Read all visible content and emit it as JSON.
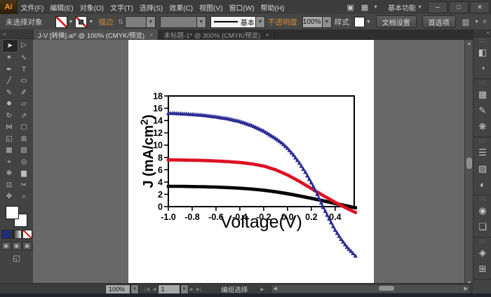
{
  "app": {
    "logo": "Ai",
    "menus": [
      "文件(F)",
      "编辑(E)",
      "对象(O)",
      "文字(T)",
      "选择(S)",
      "效果(C)",
      "视图(V)",
      "窗口(W)",
      "帮助(H)"
    ],
    "workspace": "基本功能",
    "icons": {
      "bridge": "▣",
      "arrange_documents": "▦",
      "minimize": "─",
      "maximize": "□",
      "close": "✕",
      "caret_down": "▼",
      "collapse_double_arrow": "«"
    }
  },
  "control_bar": {
    "no_selection_label": "未选择对象",
    "stroke_label": "描边:",
    "stepper_icon": "⇅",
    "brush_definition": "基本",
    "opacity_label": "不透明度:",
    "opacity_value": "100%",
    "style_label": "样式:",
    "document_setup_button": "文档设置",
    "preferences_button": "首选项",
    "panel_menu_icon": "≡"
  },
  "tabs": [
    {
      "title": "J-V [转换].ai* @ 100% (CMYK/预览)",
      "close": "×",
      "active": true
    },
    {
      "title": "未标题-1* @ 300% (CMYK/预览)",
      "close": "×",
      "active": false
    }
  ],
  "toolbar": {
    "tools": [
      {
        "name": "selection",
        "glyph": "➤",
        "active": true
      },
      {
        "name": "direct-selection",
        "glyph": "▷",
        "active": false
      },
      {
        "name": "magic-wand",
        "glyph": "✶",
        "active": false
      },
      {
        "name": "lasso",
        "glyph": "∿",
        "active": false
      },
      {
        "name": "pen",
        "glyph": "✒",
        "active": false
      },
      {
        "name": "type",
        "glyph": "T",
        "active": false
      },
      {
        "name": "line-segment",
        "glyph": "╱",
        "active": false
      },
      {
        "name": "rectangle",
        "glyph": "▭",
        "active": false
      },
      {
        "name": "paintbrush",
        "glyph": "✎",
        "active": false
      },
      {
        "name": "pencil",
        "glyph": "✐",
        "active": false
      },
      {
        "name": "blob-brush",
        "glyph": "✹",
        "active": false
      },
      {
        "name": "eraser",
        "glyph": "▱",
        "active": false
      },
      {
        "name": "rotate",
        "glyph": "↻",
        "active": false
      },
      {
        "name": "scale",
        "glyph": "⇗",
        "active": false
      },
      {
        "name": "width-tool",
        "glyph": "⋈",
        "active": false
      },
      {
        "name": "free-transform",
        "glyph": "▢",
        "active": false
      },
      {
        "name": "shape-builder",
        "glyph": "◱",
        "active": false
      },
      {
        "name": "perspective-grid",
        "glyph": "⊞",
        "active": false
      },
      {
        "name": "mesh",
        "glyph": "▦",
        "active": false
      },
      {
        "name": "gradient",
        "glyph": "▨",
        "active": false
      },
      {
        "name": "eyedropper",
        "glyph": "⌖",
        "active": false
      },
      {
        "name": "blend",
        "glyph": "◎",
        "active": false
      },
      {
        "name": "symbol-sprayer",
        "glyph": "❋",
        "active": false
      },
      {
        "name": "column-graph",
        "glyph": "▆",
        "active": false
      },
      {
        "name": "artboard",
        "glyph": "⊡",
        "active": false
      },
      {
        "name": "slice",
        "glyph": "✂",
        "active": false
      },
      {
        "name": "hand",
        "glyph": "✥",
        "active": false
      },
      {
        "name": "zoom",
        "glyph": "⌕",
        "active": false
      }
    ],
    "fill_none_color": "#d42020",
    "color_buttons": [
      "#1d2f7b",
      "gradient",
      "none"
    ]
  },
  "status_bar": {
    "zoom_value": "100%",
    "artboard_number": "1",
    "nav_icons": [
      "|◀",
      "◀",
      "▶",
      "▶|"
    ],
    "status_text": "编组选择",
    "popup_arrow": "▶"
  },
  "dock": {
    "groups": [
      [
        {
          "name": "color",
          "glyph": "◧"
        },
        {
          "name": "color-guide",
          "glyph": "◔"
        }
      ],
      [
        {
          "name": "swatches",
          "glyph": "▦"
        },
        {
          "name": "brushes",
          "glyph": "✎"
        },
        {
          "name": "symbols",
          "glyph": "❋"
        }
      ],
      [
        {
          "name": "stroke",
          "glyph": "☰"
        },
        {
          "name": "gradient",
          "glyph": "▨"
        },
        {
          "name": "transparency",
          "glyph": "◐"
        }
      ],
      [
        {
          "name": "appearance",
          "glyph": "◉"
        },
        {
          "name": "graphic-styles",
          "glyph": "❏"
        }
      ],
      [
        {
          "name": "layers",
          "glyph": "◈"
        },
        {
          "name": "artboards",
          "glyph": "⊞"
        }
      ]
    ]
  },
  "chart_data": {
    "type": "line",
    "title": "",
    "xlabel": "Voltage(V)",
    "ylabel": "J (mA/cm²)",
    "ylabel_main": "J (mA/cm",
    "ylabel_sup": "2",
    "ylabel_close": ")",
    "xlim": [
      -1.0,
      0.56
    ],
    "ylim": [
      0,
      18
    ],
    "xtick_values": [
      -1.0,
      -0.8,
      -0.6,
      -0.4,
      -0.2,
      0.0,
      0.2,
      0.4
    ],
    "xtick_labels": [
      "-1.0",
      "-0.8",
      "-0.6",
      "-0.4",
      "-0.2",
      "0.0",
      "0.2",
      "0.4"
    ],
    "ytick_values": [
      0,
      2,
      4,
      6,
      8,
      10,
      12,
      14,
      16,
      18
    ],
    "ytick_labels": [
      "0",
      "2",
      "4",
      "6",
      "8",
      "10",
      "12",
      "14",
      "16",
      "18"
    ],
    "grid": false,
    "legend": "none",
    "frame": true,
    "note": "curves are unclipped and overflow below the axis frame at right",
    "series": [
      {
        "name": "black-squares",
        "marker": "square",
        "color": "#000000",
        "points": [
          [
            -1.0,
            3.3
          ],
          [
            -0.9,
            3.3
          ],
          [
            -0.8,
            3.27
          ],
          [
            -0.7,
            3.23
          ],
          [
            -0.6,
            3.18
          ],
          [
            -0.5,
            3.1
          ],
          [
            -0.4,
            3.0
          ],
          [
            -0.3,
            2.86
          ],
          [
            -0.2,
            2.67
          ],
          [
            -0.1,
            2.42
          ],
          [
            0.0,
            2.1
          ],
          [
            0.1,
            1.74
          ],
          [
            0.2,
            1.36
          ],
          [
            0.3,
            0.95
          ],
          [
            0.4,
            0.52
          ],
          [
            0.5,
            0.1
          ],
          [
            0.57,
            -0.18
          ]
        ]
      },
      {
        "name": "red-circles",
        "marker": "circle",
        "color": "#dd1122",
        "points": [
          [
            -1.0,
            7.6
          ],
          [
            -0.9,
            7.58
          ],
          [
            -0.8,
            7.55
          ],
          [
            -0.7,
            7.5
          ],
          [
            -0.6,
            7.42
          ],
          [
            -0.5,
            7.32
          ],
          [
            -0.4,
            7.18
          ],
          [
            -0.3,
            6.95
          ],
          [
            -0.2,
            6.6
          ],
          [
            -0.1,
            6.0
          ],
          [
            0.0,
            5.15
          ],
          [
            0.1,
            4.1
          ],
          [
            0.2,
            2.95
          ],
          [
            0.3,
            1.8
          ],
          [
            0.4,
            0.7
          ],
          [
            0.45,
            0.2
          ],
          [
            0.5,
            -0.3
          ],
          [
            0.57,
            -0.95
          ]
        ]
      },
      {
        "name": "blue-triangles",
        "marker": "triangle",
        "color": "#2e2e97",
        "points": [
          [
            -1.0,
            15.2
          ],
          [
            -0.9,
            15.12
          ],
          [
            -0.8,
            15.0
          ],
          [
            -0.7,
            14.85
          ],
          [
            -0.6,
            14.6
          ],
          [
            -0.5,
            14.3
          ],
          [
            -0.4,
            13.85
          ],
          [
            -0.3,
            13.2
          ],
          [
            -0.2,
            12.3
          ],
          [
            -0.1,
            11.1
          ],
          [
            -0.05,
            10.4
          ],
          [
            0.0,
            9.5
          ],
          [
            0.05,
            8.4
          ],
          [
            0.1,
            7.1
          ],
          [
            0.15,
            5.6
          ],
          [
            0.2,
            3.9
          ],
          [
            0.25,
            2.0
          ],
          [
            0.3,
            -0.1
          ],
          [
            0.35,
            -2.0
          ],
          [
            0.4,
            -3.8
          ],
          [
            0.45,
            -5.3
          ],
          [
            0.5,
            -6.6
          ],
          [
            0.55,
            -7.6
          ],
          [
            0.57,
            -8.0
          ]
        ]
      }
    ]
  },
  "colors": {
    "ui_bar": "#3c3c3c",
    "canvas": "#686868",
    "artboard": "#ffffff",
    "accent_link": "#cf8a3b",
    "series_blue": "#2e2e97",
    "series_red": "#dd1122",
    "series_black": "#000000"
  }
}
